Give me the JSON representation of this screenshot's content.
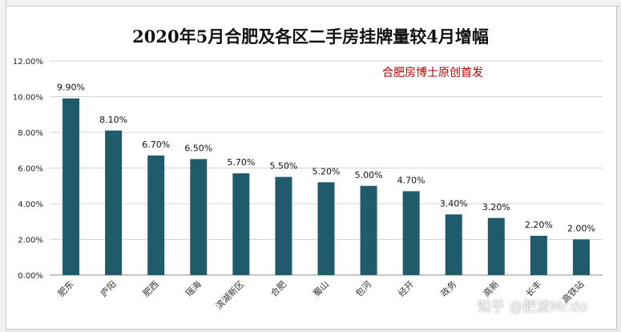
{
  "chart_data": {
    "type": "bar",
    "title": "2020年5月合肥及各区二手房挂牌量较4月增幅",
    "annotation": "合肥房博士原创首发",
    "categories": [
      "肥东",
      "庐阳",
      "肥西",
      "瑶海",
      "滨湖新区",
      "合肥",
      "蜀山",
      "包河",
      "经开",
      "政务",
      "高新",
      "长丰",
      "高铁站"
    ],
    "values": [
      9.9,
      8.1,
      6.7,
      6.5,
      5.7,
      5.5,
      5.2,
      5.0,
      4.7,
      3.4,
      3.2,
      2.2,
      2.0
    ],
    "data_labels": [
      "9.90%",
      "8.10%",
      "6.70%",
      "6.50%",
      "5.70%",
      "5.50%",
      "5.20%",
      "5.00%",
      "4.70%",
      "3.40%",
      "3.20%",
      "2.20%",
      "2.00%"
    ],
    "y_ticks": [
      "0.00%",
      "2.00%",
      "4.00%",
      "6.00%",
      "8.00%",
      "10.00%",
      "12.00%"
    ],
    "ylim": [
      0,
      12
    ],
    "grid": true,
    "bar_color": "#1f5b6b",
    "watermark": "知乎 @肥波Mr.do"
  }
}
